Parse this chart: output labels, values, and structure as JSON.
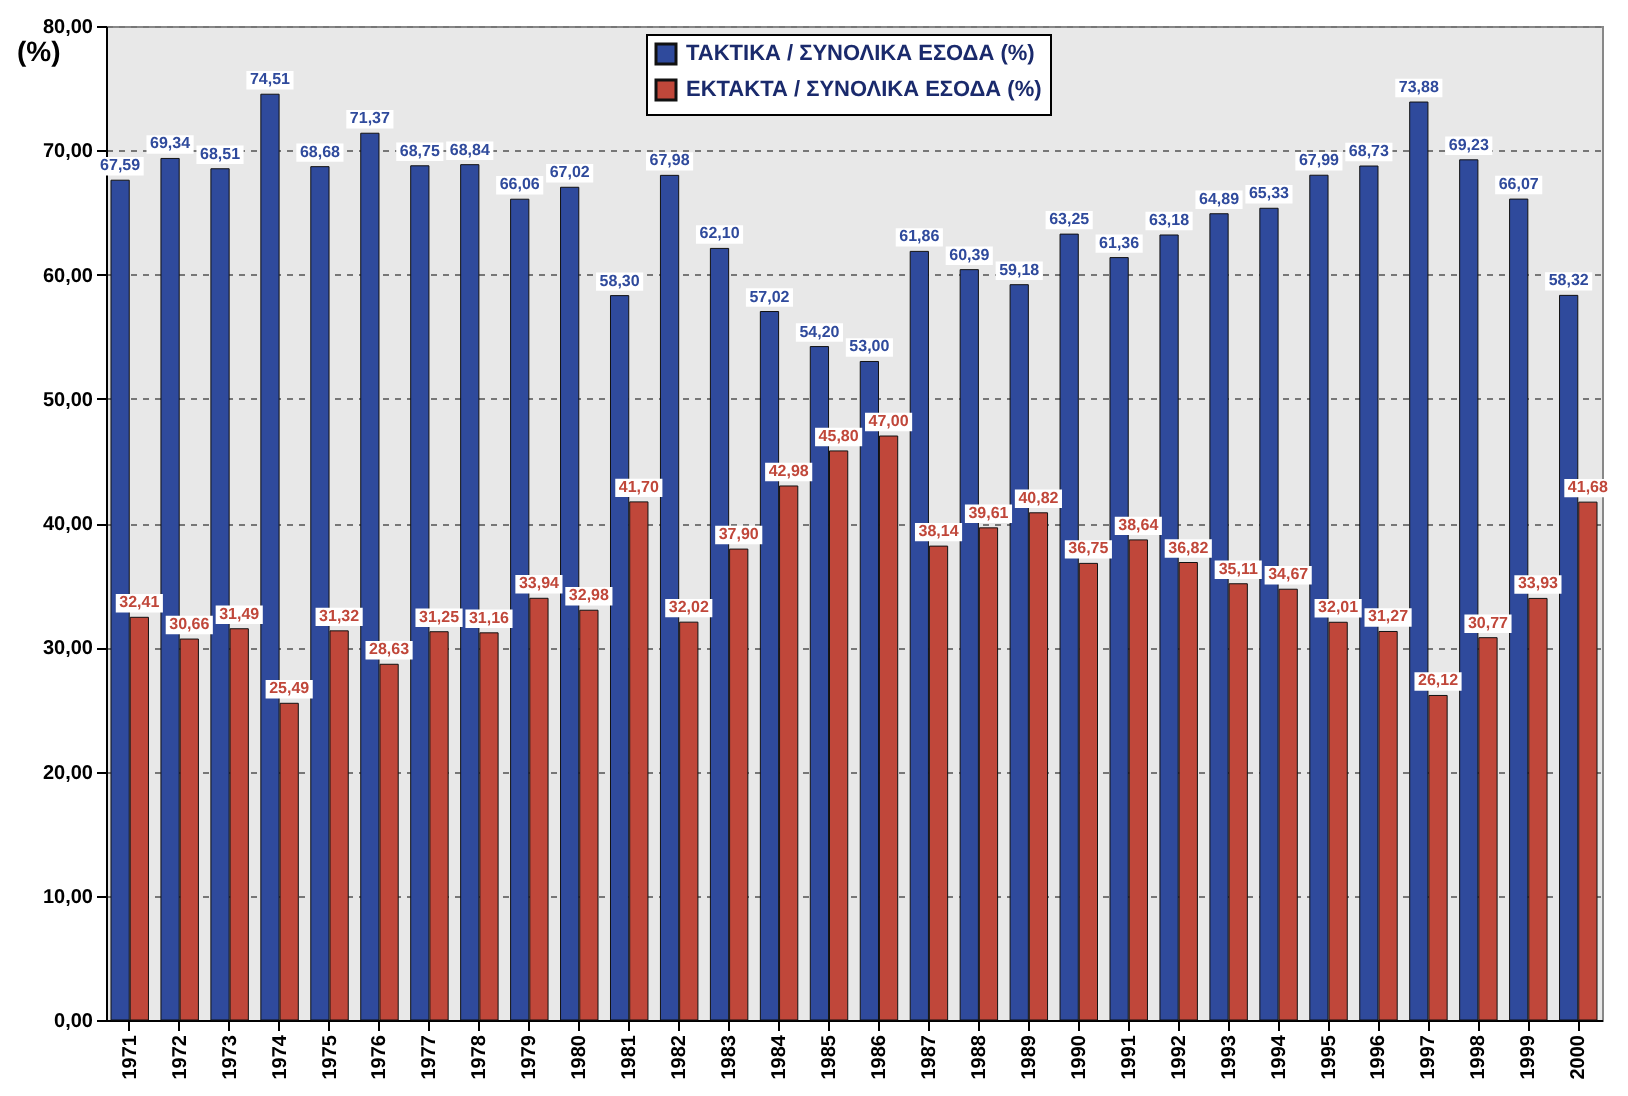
{
  "chart_data": {
    "type": "bar",
    "ylabel": "(%)",
    "categories": [
      "1971",
      "1972",
      "1973",
      "1974",
      "1975",
      "1976",
      "1977",
      "1978",
      "1979",
      "1980",
      "1981",
      "1982",
      "1983",
      "1984",
      "1985",
      "1986",
      "1987",
      "1988",
      "1989",
      "1990",
      "1991",
      "1992",
      "1993",
      "1994",
      "1995",
      "1996",
      "1997",
      "1998",
      "1999",
      "2000"
    ],
    "series": [
      {
        "name": "ΤΑΚΤΙΚΑ / ΣΥΝΟΛΙΚΑ ΕΣΟΔΑ (%)",
        "color": "#2f4a9c",
        "values": [
          67.59,
          69.34,
          68.51,
          74.51,
          68.68,
          71.37,
          68.75,
          68.84,
          66.06,
          67.02,
          58.3,
          67.98,
          62.1,
          57.02,
          54.2,
          53.0,
          61.86,
          60.39,
          59.18,
          63.25,
          61.36,
          63.18,
          64.89,
          65.33,
          67.99,
          68.73,
          73.88,
          69.23,
          66.07,
          58.32
        ],
        "value_labels": [
          "67,59",
          "69,34",
          "68,51",
          "74,51",
          "68,68",
          "71,37",
          "68,75",
          "68,84",
          "66,06",
          "67,02",
          "58,30",
          "67,98",
          "62,10",
          "57,02",
          "54,20",
          "53,00",
          "61,86",
          "60,39",
          "59,18",
          "63,25",
          "61,36",
          "63,18",
          "64,89",
          "65,33",
          "67,99",
          "68,73",
          "73,88",
          "69,23",
          "66,07",
          "58,32"
        ]
      },
      {
        "name": "ΕΚΤΑΚΤΑ / ΣΥΝΟΛΙΚΑ ΕΣΟΔΑ (%)",
        "color": "#c0473a",
        "values": [
          32.41,
          30.66,
          31.49,
          25.49,
          31.32,
          28.63,
          31.25,
          31.16,
          33.94,
          32.98,
          41.7,
          32.02,
          37.9,
          42.98,
          45.8,
          47.0,
          38.14,
          39.61,
          40.82,
          36.75,
          38.64,
          36.82,
          35.11,
          34.67,
          32.01,
          31.27,
          26.12,
          30.77,
          33.93,
          41.68
        ],
        "value_labels": [
          "32,41",
          "30,66",
          "31,49",
          "25,49",
          "31,32",
          "28,63",
          "31,25",
          "31,16",
          "33,94",
          "32,98",
          "41,70",
          "32,02",
          "37,90",
          "42,98",
          "45,80",
          "47,00",
          "38,14",
          "39,61",
          "40,82",
          "36,75",
          "38,64",
          "36,82",
          "35,11",
          "34,67",
          "32,01",
          "31,27",
          "26,12",
          "30,77",
          "33,93",
          "41,68"
        ]
      }
    ],
    "ylim": [
      0,
      80
    ],
    "yticks": [
      {
        "value": 0,
        "label": "0,00"
      },
      {
        "value": 10,
        "label": "10,00"
      },
      {
        "value": 20,
        "label": "20,00"
      },
      {
        "value": 30,
        "label": "30,00"
      },
      {
        "value": 40,
        "label": "40,00"
      },
      {
        "value": 50,
        "label": "50,00"
      },
      {
        "value": 60,
        "label": "60,00"
      },
      {
        "value": 70,
        "label": "70,00"
      },
      {
        "value": 80,
        "label": "80,00"
      }
    ],
    "grid": "y",
    "legend": "top"
  }
}
